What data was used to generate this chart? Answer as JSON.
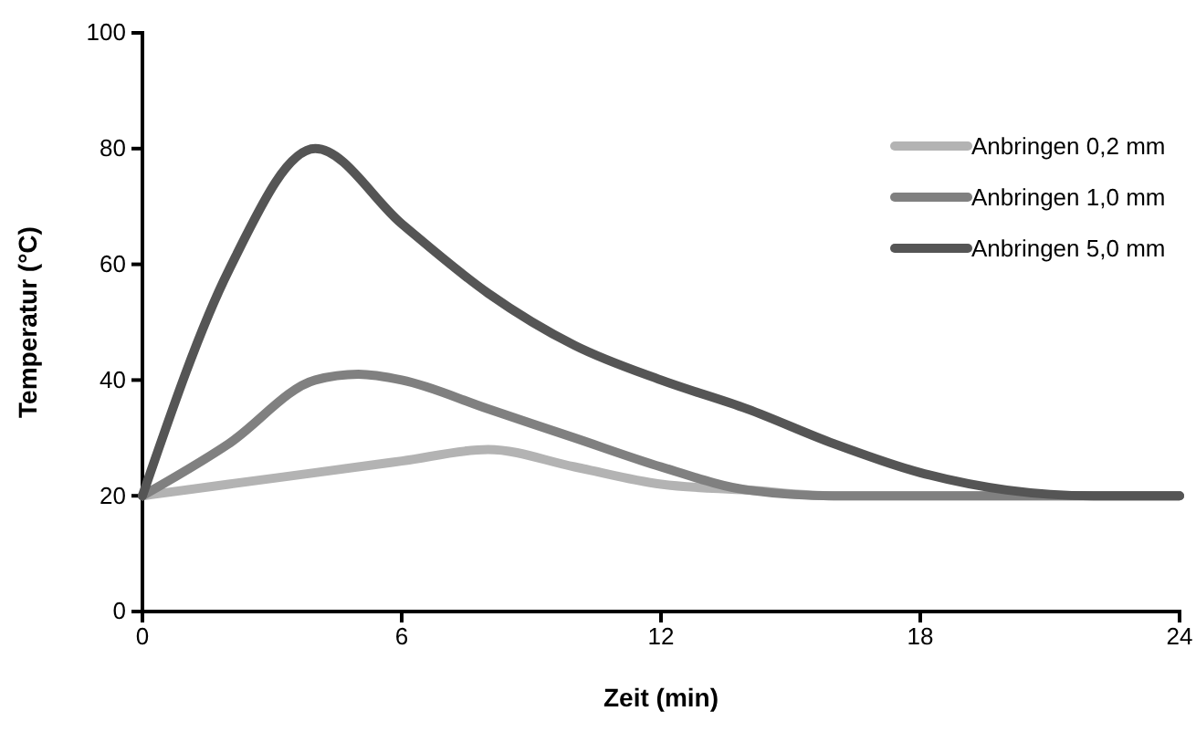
{
  "chart_data": {
    "type": "line",
    "xlabel": "Zeit (min)",
    "ylabel": "Temperatur (°C)",
    "xlim": [
      0,
      24
    ],
    "xticks": [
      0,
      6,
      12,
      18,
      24
    ],
    "ylim": [
      0,
      100
    ],
    "yticks": [
      0,
      20,
      40,
      60,
      80,
      100
    ],
    "grid": false,
    "legend": "top right",
    "marker": "none",
    "line_style": "solid",
    "series": [
      {
        "name": "Anbringen 0,2 mm",
        "color": "#b3b3b3",
        "x": [
          0,
          2,
          4,
          6,
          8,
          10,
          12,
          14,
          16,
          20,
          24
        ],
        "values": [
          20,
          22,
          24,
          26,
          28,
          25,
          22,
          21,
          20,
          20,
          20
        ]
      },
      {
        "name": "Anbringen 1,0 mm",
        "color": "#808080",
        "x": [
          0,
          2,
          4,
          5,
          6,
          8,
          10,
          12,
          14,
          16,
          20,
          24
        ],
        "values": [
          20,
          29,
          40,
          41,
          40,
          35,
          30,
          25,
          21,
          20,
          20,
          20
        ]
      },
      {
        "name": "Anbringen 5,0 mm",
        "color": "#555555",
        "x": [
          0,
          2,
          4,
          6,
          8,
          10,
          12,
          14,
          16,
          18,
          20,
          22,
          24
        ],
        "values": [
          20,
          59,
          80,
          67,
          55,
          46,
          40,
          35,
          29,
          24,
          21,
          20,
          20
        ]
      }
    ]
  }
}
